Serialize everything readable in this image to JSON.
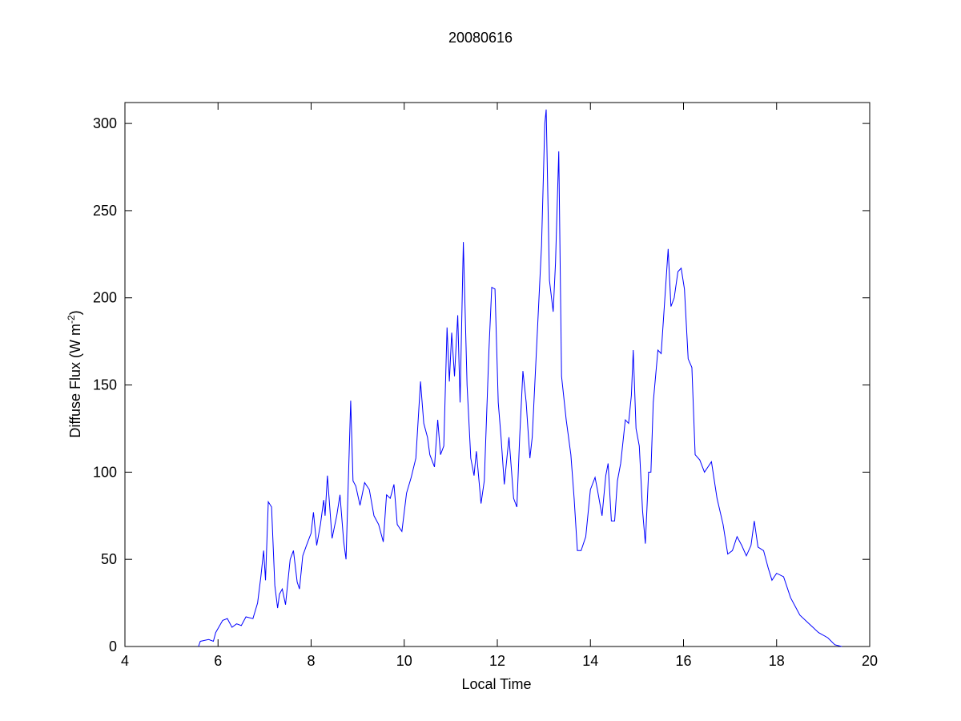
{
  "chart_data": {
    "type": "line",
    "title": "20080616",
    "xlabel": "Local Time",
    "ylabel": {
      "text": "Diffuse Flux (W m",
      "superscript": "-2",
      "suffix": ")"
    },
    "xlim": [
      4,
      20
    ],
    "xticks": [
      4,
      6,
      8,
      10,
      12,
      14,
      16,
      18,
      20
    ],
    "ylim": [
      0,
      312
    ],
    "yticks": [
      0,
      50,
      100,
      150,
      200,
      250,
      300
    ],
    "series": [
      {
        "color": "#0000ff",
        "x": [
          5.58,
          5.62,
          5.8,
          5.9,
          5.95,
          6.1,
          6.2,
          6.3,
          6.4,
          6.5,
          6.6,
          6.75,
          6.85,
          6.92,
          6.98,
          7.02,
          7.08,
          7.15,
          7.22,
          7.28,
          7.32,
          7.38,
          7.45,
          7.55,
          7.62,
          7.7,
          7.75,
          7.82,
          7.9,
          8.0,
          8.05,
          8.12,
          8.2,
          8.27,
          8.3,
          8.35,
          8.4,
          8.45,
          8.55,
          8.62,
          8.7,
          8.75,
          8.85,
          8.9,
          8.96,
          9.05,
          9.15,
          9.25,
          9.35,
          9.45,
          9.55,
          9.62,
          9.7,
          9.78,
          9.85,
          9.95,
          10.05,
          10.15,
          10.25,
          10.35,
          10.42,
          10.5,
          10.55,
          10.65,
          10.72,
          10.78,
          10.85,
          10.92,
          10.97,
          11.02,
          11.08,
          11.15,
          11.2,
          11.27,
          11.35,
          11.43,
          11.5,
          11.55,
          11.65,
          11.72,
          11.82,
          11.88,
          11.95,
          12.02,
          12.08,
          12.15,
          12.25,
          12.35,
          12.42,
          12.48,
          12.55,
          12.62,
          12.7,
          12.75,
          12.85,
          12.95,
          13.02,
          13.05,
          13.12,
          13.2,
          13.25,
          13.32,
          13.38,
          13.48,
          13.58,
          13.65,
          13.72,
          13.8,
          13.9,
          14.0,
          14.1,
          14.15,
          14.25,
          14.33,
          14.38,
          14.45,
          14.52,
          14.58,
          14.65,
          14.75,
          14.82,
          14.88,
          14.92,
          14.98,
          15.05,
          15.12,
          15.18,
          15.25,
          15.3,
          15.35,
          15.45,
          15.52,
          15.6,
          15.67,
          15.73,
          15.8,
          15.88,
          15.95,
          16.02,
          16.1,
          16.18,
          16.25,
          16.35,
          16.45,
          16.6,
          16.72,
          16.85,
          16.95,
          17.05,
          17.15,
          17.25,
          17.35,
          17.45,
          17.52,
          17.6,
          17.72,
          17.82,
          17.9,
          18.0,
          18.15,
          18.3,
          18.5,
          18.7,
          18.9,
          19.1,
          19.25,
          19.4
        ],
        "values": [
          0,
          3,
          4,
          3,
          8,
          15,
          16,
          11,
          13,
          12,
          17,
          16,
          25,
          40,
          55,
          38,
          83,
          80,
          35,
          22,
          30,
          33,
          24,
          50,
          55,
          37,
          33,
          52,
          58,
          65,
          77,
          58,
          70,
          84,
          75,
          98,
          80,
          62,
          75,
          87,
          60,
          50,
          141,
          95,
          92,
          81,
          94,
          90,
          75,
          70,
          60,
          87,
          85,
          93,
          70,
          66,
          88,
          97,
          108,
          152,
          128,
          120,
          110,
          103,
          130,
          110,
          115,
          183,
          152,
          180,
          155,
          190,
          140,
          232,
          150,
          108,
          98,
          112,
          82,
          95,
          170,
          206,
          205,
          140,
          120,
          93,
          120,
          85,
          80,
          120,
          158,
          140,
          108,
          120,
          175,
          230,
          300,
          308,
          210,
          192,
          220,
          284,
          155,
          130,
          110,
          85,
          55,
          55,
          63,
          90,
          97,
          90,
          75,
          98,
          105,
          72,
          72,
          95,
          105,
          130,
          128,
          144,
          170,
          125,
          115,
          78,
          59,
          100,
          100,
          140,
          170,
          168,
          200,
          228,
          195,
          200,
          215,
          217,
          205,
          165,
          160,
          110,
          107,
          100,
          106,
          85,
          70,
          53,
          55,
          63,
          58,
          52,
          58,
          72,
          57,
          55,
          45,
          38,
          42,
          40,
          28,
          18,
          13,
          8,
          5,
          1,
          0
        ]
      }
    ]
  }
}
